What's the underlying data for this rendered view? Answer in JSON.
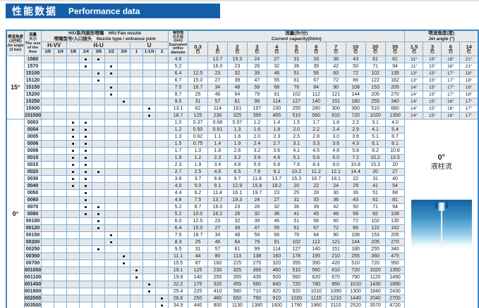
{
  "title": {
    "zh": "性能数据",
    "en": "Performance data"
  },
  "colors": {
    "title_bar": "#155fa8",
    "table_outer_border": "#3e86c4",
    "grid_line": "#7cb1dd",
    "stripe_gray": "#e7e7e7",
    "header_bg": "#e9e9e9",
    "jet_image_blue": "#15639f"
  },
  "header": {
    "angle": {
      "lines": [
        "喷流角度",
        "(3巴时)",
        "Jet angle",
        "(3 bar)"
      ]
    },
    "flow": {
      "lines": [
        "流量",
        "大小",
        "The size",
        "of the",
        "flow"
      ]
    },
    "series": {
      "lines": [
        "H/U系列扇形喷嘴　H/U  Fan nozzle",
        "喷嘴型号/入口接头　Nozzle type / entrance joint"
      ]
    },
    "groups": [
      {
        "label": "H-VV",
        "sizes": [
          "1/8",
          "1/4"
        ]
      },
      {
        "label": "H-U",
        "sizes": [
          "1/8",
          "1/4",
          "3/8",
          "1/2",
          "3/4"
        ]
      },
      {
        "label": "U",
        "sizes": [
          "1",
          "1-1/4",
          "2"
        ]
      }
    ],
    "equiv": {
      "lines": [
        "等效喷",
        "孔孔径",
        "(mm)",
        "Equivalent",
        "orifice",
        "diameter"
      ]
    },
    "capacity": {
      "lines": [
        "流量(升/分)",
        "Current capacity(l/min)"
      ],
      "pressures": [
        "0.3",
        "1",
        "2",
        "3",
        "4",
        "5",
        "6",
        "7",
        "10",
        "20",
        "35"
      ]
    },
    "jet": {
      "lines": [
        "喷流角度(度)",
        "Jet angle (°)"
      ],
      "pressures": [
        "1.5",
        "3",
        "6",
        "14"
      ]
    },
    "pressure_unit": "巴"
  },
  "sections": [
    {
      "angle_label": "15°",
      "rows": [
        {
          "flow": "1560",
          "dots": [
            3,
            4
          ],
          "equiv": "4.8",
          "cap": [
            "",
            "13.7",
            "19.3",
            "24",
            "27",
            "31",
            "33",
            "36",
            "43",
            "61",
            "81"
          ],
          "angles": [
            "11°",
            "15°",
            "18°",
            "21°"
          ]
        },
        {
          "flow": "1570",
          "dots": [
            3,
            5
          ],
          "equiv": "5.2",
          "cap": [
            "",
            "16.0",
            "23",
            "28",
            "32",
            "36",
            "39",
            "42",
            "50",
            "71",
            "94"
          ],
          "angles": [
            "11°",
            "15°",
            "18°",
            "21°"
          ]
        },
        {
          "flow": "15100",
          "dots": [
            4,
            5
          ],
          "equiv": "6.4",
          "cap": [
            "12.5",
            "23",
            "32",
            "39",
            "46",
            "51",
            "56",
            "60",
            "72",
            "102",
            "135"
          ],
          "angles": [
            "13°",
            "15°",
            "17°",
            "18°"
          ]
        },
        {
          "flow": "15120",
          "dots": [
            4
          ],
          "equiv": "6.7",
          "cap": [
            "15.0",
            "27",
            "39",
            "47",
            "55",
            "61",
            "67",
            "72",
            "86",
            "122",
            "162"
          ],
          "angles": [
            "13°",
            "15°",
            "17°",
            "18°"
          ]
        },
        {
          "flow": "15150",
          "dots": [
            5
          ],
          "equiv": "7.5",
          "cap": [
            "18.7",
            "34",
            "48",
            "59",
            "68",
            "76",
            "84",
            "90",
            "108",
            "153",
            "205"
          ],
          "angles": [
            "14°",
            "15°",
            "17°",
            "18°"
          ]
        },
        {
          "flow": "15200",
          "dots": [
            5
          ],
          "equiv": "8.7",
          "cap": [
            "25",
            "46",
            "64",
            "79",
            "91",
            "102",
            "112",
            "121",
            "144",
            "205",
            "270"
          ],
          "angles": [
            "14°",
            "15°",
            "17°",
            "18°"
          ]
        },
        {
          "flow": "15250",
          "dots": [
            6
          ],
          "equiv": "9.5",
          "cap": [
            "31",
            "57",
            "81",
            "99",
            "114",
            "127",
            "140",
            "151",
            "180",
            "255",
            "340"
          ],
          "angles": [
            "14°",
            "15°",
            "16°",
            "17°"
          ]
        },
        {
          "flow": "15500",
          "dots": [
            8
          ],
          "equiv": "13.1",
          "cap": [
            "62",
            "114",
            "161",
            "197",
            "230",
            "255",
            "280",
            "300",
            "360",
            "510",
            "680"
          ],
          "angles": [
            "14°",
            "15°",
            "16°",
            "17°"
          ]
        },
        {
          "flow": "151000",
          "dots": [
            8
          ],
          "equiv": "18.7",
          "cap": [
            "125",
            "230",
            "325",
            "395",
            "455",
            "510",
            "560",
            "610",
            "720",
            "1020",
            "1350"
          ],
          "angles": [
            "14°",
            "15°",
            "16°",
            "17°"
          ]
        }
      ]
    },
    {
      "angle_label": "0°",
      "panel": {
        "angle": "0°",
        "type": "液柱流"
      },
      "rows": [
        {
          "flow": "0003",
          "dots": [
            2,
            3
          ],
          "equiv": "1.0",
          "cap": [
            "0.37",
            "0.68",
            "0.97",
            "1.2",
            "1.4",
            "1.5",
            "1.7",
            "1.8",
            "2.2",
            "3.1",
            "4.0"
          ]
        },
        {
          "flow": "0004",
          "dots": [
            2,
            3
          ],
          "equiv": "1.2",
          "cap": [
            "0.50",
            "0.91",
            "1.3",
            "1.6",
            "1.8",
            "2.0",
            "2.2",
            "2.4",
            "2.9",
            "4.1",
            "5.4"
          ]
        },
        {
          "flow": "0005",
          "dots": [
            2,
            3
          ],
          "equiv": "1.3",
          "cap": [
            "0.62",
            "1.1",
            "1.6",
            "2.0",
            "2.3",
            "2.5",
            "2.8",
            "3.0",
            "3.6",
            "5.1",
            "6.7"
          ]
        },
        {
          "flow": "0006",
          "dots": [
            2,
            3
          ],
          "equiv": "1.5",
          "cap": [
            "0.75",
            "1.4",
            "1.9",
            "2.4",
            "2.7",
            "3.1",
            "3.3",
            "3.6",
            "4.3",
            "6.1",
            "8.1"
          ]
        },
        {
          "flow": "0008",
          "dots": [
            2,
            3
          ],
          "equiv": "1.7",
          "cap": [
            "1.0",
            "1.8",
            "2.6",
            "3.2",
            "3.6",
            "4.1",
            "4.5",
            "4.8",
            "5.8",
            "8.2",
            "10.8"
          ]
        },
        {
          "flow": "0010",
          "dots": [
            2,
            3
          ],
          "equiv": "1.9",
          "cap": [
            "1.2",
            "2.3",
            "3.2",
            "3.9",
            "4.6",
            "5.1",
            "5.6",
            "6.0",
            "7.2",
            "10.2",
            "13.5"
          ]
        },
        {
          "flow": "0015",
          "dots": [
            2,
            3
          ],
          "equiv": "2.3",
          "cap": [
            "1.9",
            "3.4",
            "4.8",
            "5.9",
            "6.8",
            "7.6",
            "8.4",
            "9.0",
            "10.8",
            "15.3",
            "20"
          ]
        },
        {
          "flow": "0020",
          "dots": [
            2,
            3,
            4
          ],
          "equiv": "2.7",
          "cap": [
            "2.5",
            "4.6",
            "6.5",
            "7.9",
            "9.1",
            "10.2",
            "11.2",
            "12.1",
            "14.4",
            "20",
            "27"
          ]
        },
        {
          "flow": "0030",
          "dots": [
            2,
            3
          ],
          "equiv": "3.6",
          "cap": [
            "3.7",
            "6.8",
            "9.7",
            "11.8",
            "13.7",
            "15.3",
            "16.7",
            "18.1",
            "22",
            "31",
            "40"
          ]
        },
        {
          "flow": "0040",
          "dots": [
            2,
            3
          ],
          "equiv": "4.0",
          "cap": [
            "5.0",
            "9.1",
            "12.9",
            "15.8",
            "18.2",
            "20",
            "22",
            "24",
            "29",
            "41",
            "54"
          ]
        },
        {
          "flow": "0050",
          "dots": [
            3
          ],
          "equiv": "4.4",
          "cap": [
            "6.2",
            "11.4",
            "16.1",
            "19.7",
            "23",
            "25",
            "28",
            "30",
            "36",
            "51",
            "68"
          ]
        },
        {
          "flow": "0060",
          "dots": [
            3
          ],
          "equiv": "4.8",
          "cap": [
            "7.5",
            "13.7",
            "19.3",
            "24",
            "27",
            "31",
            "33",
            "36",
            "43",
            "61",
            "81"
          ]
        },
        {
          "flow": "0070",
          "dots": [
            3,
            4
          ],
          "equiv": "5.2",
          "cap": [
            "8.7",
            "16.0",
            "23",
            "28",
            "32",
            "36",
            "39",
            "42",
            "50",
            "71",
            "94"
          ]
        },
        {
          "flow": "0080",
          "dots": [
            3,
            4
          ],
          "equiv": "5.2",
          "cap": [
            "10.0",
            "18.2",
            "26",
            "32",
            "36",
            "41",
            "45",
            "48",
            "58",
            "82",
            "108"
          ]
        },
        {
          "flow": "00100",
          "dots": [
            4
          ],
          "equiv": "6.0",
          "cap": [
            "12.5",
            "23",
            "32",
            "39",
            "46",
            "51",
            "56",
            "60",
            "72",
            "102",
            "135"
          ]
        },
        {
          "flow": "00120",
          "dots": [
            4
          ],
          "equiv": "6.4",
          "cap": [
            "15.0",
            "27",
            "39",
            "47",
            "55",
            "61",
            "67",
            "72",
            "86",
            "122",
            "162"
          ]
        },
        {
          "flow": "00150",
          "dots": [
            5
          ],
          "equiv": "7.5",
          "cap": [
            "18.7",
            "34",
            "48",
            "59",
            "68",
            "76",
            "84",
            "90",
            "108",
            "153",
            "205"
          ]
        },
        {
          "flow": "00200",
          "dots": [
            5
          ],
          "equiv": "8.3",
          "cap": [
            "25",
            "46",
            "64",
            "79",
            "91",
            "102",
            "112",
            "121",
            "144",
            "205",
            "270"
          ]
        },
        {
          "flow": "00250",
          "dots": [
            4
          ],
          "equiv": "9.5",
          "cap": [
            "31",
            "57",
            "81",
            "99",
            "114",
            "127",
            "140",
            "151",
            "180",
            "255",
            "340"
          ]
        },
        {
          "flow": "00350",
          "dots": [
            6
          ],
          "equiv": "11.1",
          "cap": [
            "44",
            "80",
            "113",
            "138",
            "160",
            "178",
            "195",
            "210",
            "255",
            "360",
            "475"
          ]
        },
        {
          "flow": "00700",
          "dots": [
            6
          ],
          "equiv": "15.5",
          "cap": [
            "87",
            "160",
            "225",
            "275",
            "320",
            "355",
            "390",
            "420",
            "510",
            "720",
            "950"
          ]
        },
        {
          "flow": "001000",
          "dots": [
            7
          ],
          "equiv": "19.1",
          "cap": [
            "125",
            "230",
            "325",
            "395",
            "460",
            "510",
            "560",
            "610",
            "720",
            "1020",
            "1350"
          ]
        },
        {
          "flow": "001100",
          "dots": [
            7
          ],
          "equiv": "19.8",
          "cap": [
            "140",
            "255",
            "355",
            "435",
            "500",
            "560",
            "620",
            "670",
            "790",
            "1120",
            "1490"
          ]
        },
        {
          "flow": "001400",
          "dots": [
            8
          ],
          "equiv": "22.2",
          "cap": [
            "175",
            "320",
            "455",
            "560",
            "640",
            "720",
            "780",
            "850",
            "1010",
            "1430",
            "1890"
          ]
        },
        {
          "flow": "001800",
          "dots": [
            8
          ],
          "equiv": "25.4",
          "cap": [
            "225",
            "410",
            "580",
            "710",
            "820",
            "920",
            "1010",
            "1090",
            "1300",
            "1840",
            "2430"
          ]
        },
        {
          "flow": "002000",
          "dots": [
            9
          ],
          "equiv": "26.6",
          "cap": [
            "250",
            "460",
            "650",
            "790",
            "910",
            "1020",
            "1120",
            "1210",
            "1440",
            "2040",
            "2700"
          ]
        },
        {
          "flow": "003500",
          "dots": [
            9
          ],
          "equiv": "34.9",
          "cap": [
            "440",
            "800",
            "1130",
            "1380",
            "1600",
            "1790",
            "1960",
            "2110",
            "2520",
            "3570",
            "4720"
          ]
        }
      ]
    }
  ]
}
